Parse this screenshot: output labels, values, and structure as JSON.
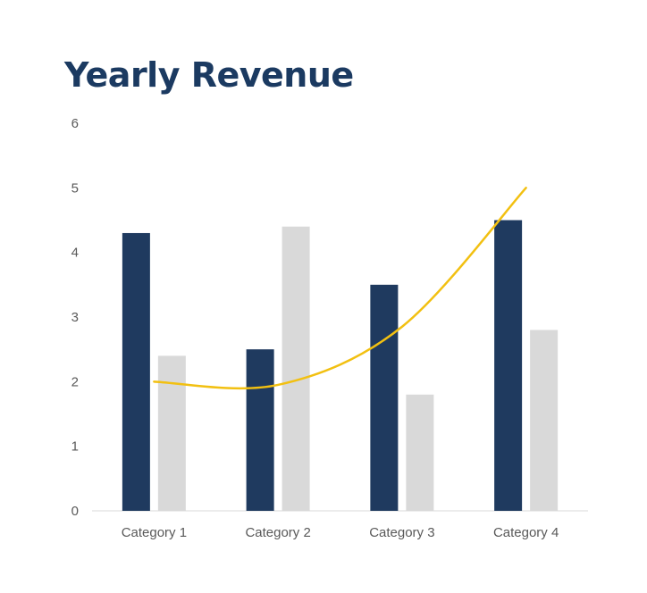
{
  "chart_data": {
    "type": "bar",
    "title": "Yearly Revenue",
    "xlabel": "",
    "ylabel": "",
    "categories": [
      "Category 1",
      "Category 2",
      "Category 3",
      "Category 4"
    ],
    "y_ticks": [
      "0",
      "1",
      "2",
      "3",
      "4",
      "5",
      "6"
    ],
    "ylim": [
      0,
      6
    ],
    "grid": false,
    "legend": "none",
    "series": [
      {
        "type": "bar",
        "color": "#1f3a5f",
        "values": [
          4.3,
          2.5,
          3.5,
          4.5
        ]
      },
      {
        "type": "bar",
        "color": "#d9d9d9",
        "values": [
          2.4,
          4.4,
          1.8,
          2.8
        ]
      },
      {
        "type": "line",
        "smooth": true,
        "color": "#f2c011",
        "values": [
          2.0,
          1.95,
          2.85,
          5.0
        ]
      }
    ]
  }
}
